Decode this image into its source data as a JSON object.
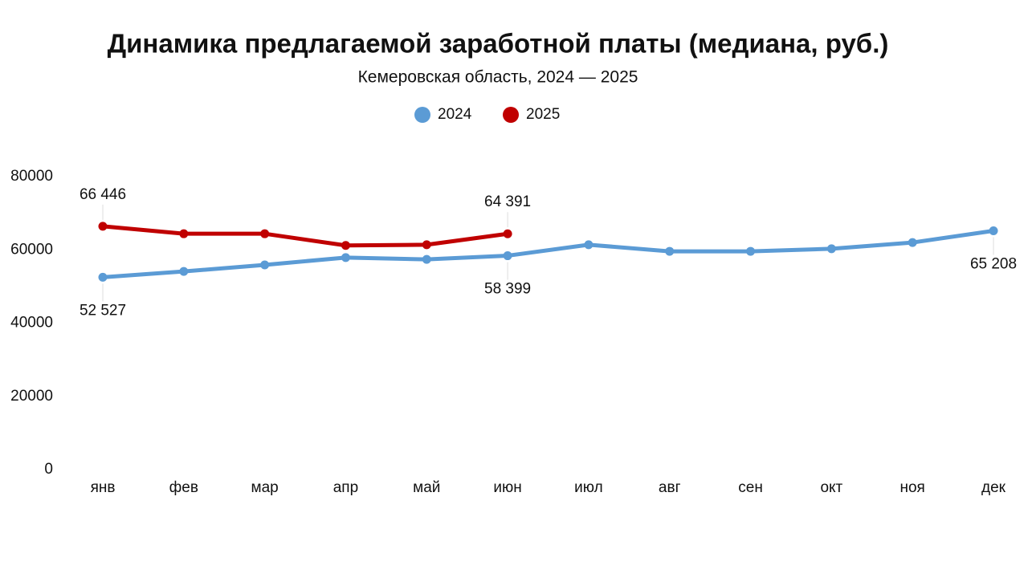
{
  "chart_data": {
    "type": "line",
    "title": "Динамика предлагаемой заработной платы (медиана, руб.)",
    "subtitle": "Кемеровская область, 2024 — 2025",
    "categories": [
      "янв",
      "фев",
      "мар",
      "апр",
      "май",
      "июн",
      "июл",
      "авг",
      "сен",
      "окт",
      "ноя",
      "дек"
    ],
    "series": [
      {
        "name": "2024",
        "color": "#5b9bd5",
        "values": [
          52527,
          54100,
          55900,
          57900,
          57400,
          58399,
          61400,
          59600,
          59600,
          60300,
          62000,
          65208
        ],
        "value_labels": [
          "52 527",
          null,
          null,
          null,
          null,
          "58 399",
          null,
          null,
          null,
          null,
          null,
          "65 208"
        ]
      },
      {
        "name": "2025",
        "color": "#c00000",
        "values": [
          66446,
          64400,
          64400,
          61200,
          61400,
          64391,
          null,
          null,
          null,
          null,
          null,
          null
        ],
        "value_labels": [
          "66 446",
          null,
          null,
          null,
          null,
          "64 391",
          null,
          null,
          null,
          null,
          null,
          null
        ]
      }
    ],
    "ylim": [
      0,
      80000
    ],
    "yticks": [
      0,
      20000,
      40000,
      60000,
      80000
    ],
    "grid": false,
    "legend": "top"
  }
}
